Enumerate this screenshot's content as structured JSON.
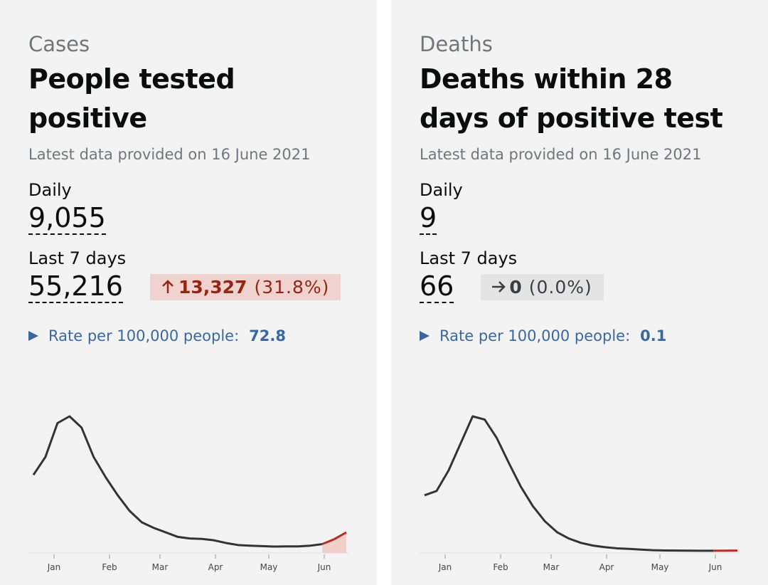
{
  "cards": [
    {
      "category": "Cases",
      "title": "People tested positive",
      "updated": "Latest data provided on 16 June 2021",
      "daily_label": "Daily",
      "daily_value": "9,055",
      "week_label": "Last 7 days",
      "week_value": "55,216",
      "change": {
        "value": "13,327",
        "percent": "(31.8%)",
        "direction": "up",
        "color": "#942514",
        "background": "#f0d3cf"
      },
      "rate_label": "Rate per 100,000 people:",
      "rate_value": "72.8",
      "sparkline": {
        "months": [
          "Jan",
          "Feb",
          "Mar",
          "Apr",
          "May",
          "Jun"
        ],
        "series": [
          {
            "color": "#333333",
            "values": [
              34000,
              42000,
              57000,
              60000,
              55000,
              42000,
              33000,
              25000,
              18000,
              13000,
              10500,
              8500,
              6500,
              5800,
              5600,
              5000,
              3800,
              2900,
              2600,
              2400,
              2200,
              2300,
              2300,
              2600,
              3300,
              null,
              null
            ]
          },
          {
            "color": "#b0301f",
            "area": "#f2cfcb",
            "values": [
              null,
              null,
              null,
              null,
              null,
              null,
              null,
              null,
              null,
              null,
              null,
              null,
              null,
              null,
              null,
              null,
              null,
              null,
              null,
              null,
              null,
              null,
              null,
              null,
              3300,
              5500,
              8500
            ]
          }
        ]
      }
    },
    {
      "category": "Deaths",
      "title": "Deaths within 28 days of positive test",
      "updated": "Latest data provided on 16 June 2021",
      "daily_label": "Daily",
      "daily_value": "9",
      "week_label": "Last 7 days",
      "week_value": "66",
      "change": {
        "value": "0",
        "percent": "(0.0%)",
        "direction": "flat",
        "color": "#383f43",
        "background": "#e4e4e4"
      },
      "rate_label": "Rate per 100,000 people:",
      "rate_value": "0.1",
      "sparkline": {
        "months": [
          "Jan",
          "Feb",
          "Mar",
          "Apr",
          "May",
          "Jun"
        ],
        "series": [
          {
            "color": "#333333",
            "values": [
              520,
              560,
              750,
              1000,
              1250,
              1220,
              1050,
              820,
              600,
              420,
              280,
              180,
              120,
              80,
              55,
              40,
              30,
              25,
              18,
              12,
              10,
              9,
              8,
              7,
              7,
              null,
              null
            ]
          },
          {
            "color": "#b0301f",
            "values": [
              null,
              null,
              null,
              null,
              null,
              null,
              null,
              null,
              null,
              null,
              null,
              null,
              null,
              null,
              null,
              null,
              null,
              null,
              null,
              null,
              null,
              null,
              null,
              null,
              7,
              8,
              9
            ]
          }
        ]
      }
    }
  ]
}
